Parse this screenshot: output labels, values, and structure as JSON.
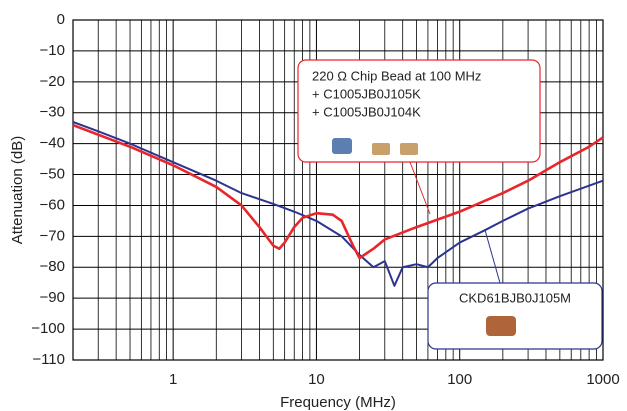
{
  "chart_data": {
    "type": "line",
    "xlabel": "Frequency (MHz)",
    "ylabel": "Attenuation (dB)",
    "xscale": "log",
    "xlim": [
      0.2,
      1000
    ],
    "xticks": [
      1,
      10,
      100,
      1000
    ],
    "ylim": [
      -110,
      0
    ],
    "yticks": [
      {
        "value": -110,
        "label": "−110"
      },
      {
        "value": -100,
        "label": "−100"
      },
      {
        "value": -90,
        "label": "−90"
      },
      {
        "value": -80,
        "label": "−80"
      },
      {
        "value": -70,
        "label": "−70"
      },
      {
        "value": -60,
        "label": "−60"
      },
      {
        "value": -50,
        "label": "−50"
      },
      {
        "value": -40,
        "label": "−40"
      },
      {
        "value": -30,
        "label": "−30"
      },
      {
        "value": -20,
        "label": "−20"
      },
      {
        "value": -10,
        "label": "−10"
      },
      0
    ],
    "grid": true,
    "series": [
      {
        "color": "#e8262b",
        "x": [
          0.2,
          0.5,
          1,
          2,
          3,
          4,
          5,
          5.5,
          6,
          7,
          8,
          10,
          13,
          15,
          18,
          20,
          25,
          30,
          50,
          100,
          200,
          300,
          500,
          800,
          1000
        ],
        "values": [
          -34,
          -41,
          -47,
          -54,
          -60,
          -67,
          -73,
          -74,
          -72,
          -67,
          -64,
          -62.5,
          -63,
          -65,
          -73,
          -77,
          -74,
          -71,
          -67,
          -62,
          -56,
          -52,
          -46,
          -41,
          -38
        ]
      },
      {
        "color": "#2b3590",
        "x": [
          0.2,
          0.3,
          0.5,
          1,
          2,
          3,
          5,
          7,
          10,
          15,
          20,
          25,
          30,
          35,
          40,
          50,
          60,
          70,
          100,
          150,
          200,
          300,
          500,
          1000
        ],
        "values": [
          -33,
          -36,
          -40,
          -46,
          -52,
          -56,
          -59.5,
          -62,
          -65,
          -70,
          -76,
          -80,
          -78,
          -86,
          -80,
          -79,
          -80,
          -77,
          -72,
          -68,
          -65,
          -61,
          -57,
          -52
        ]
      }
    ],
    "annotations": [
      {
        "lines": [
          "220 Ω Chip Bead at 100 MHz",
          "+ C1005JB0J105K",
          "+ C1005JB0J104K"
        ]
      },
      {
        "lines": [
          "CKD61BJB0J105M"
        ]
      }
    ]
  }
}
